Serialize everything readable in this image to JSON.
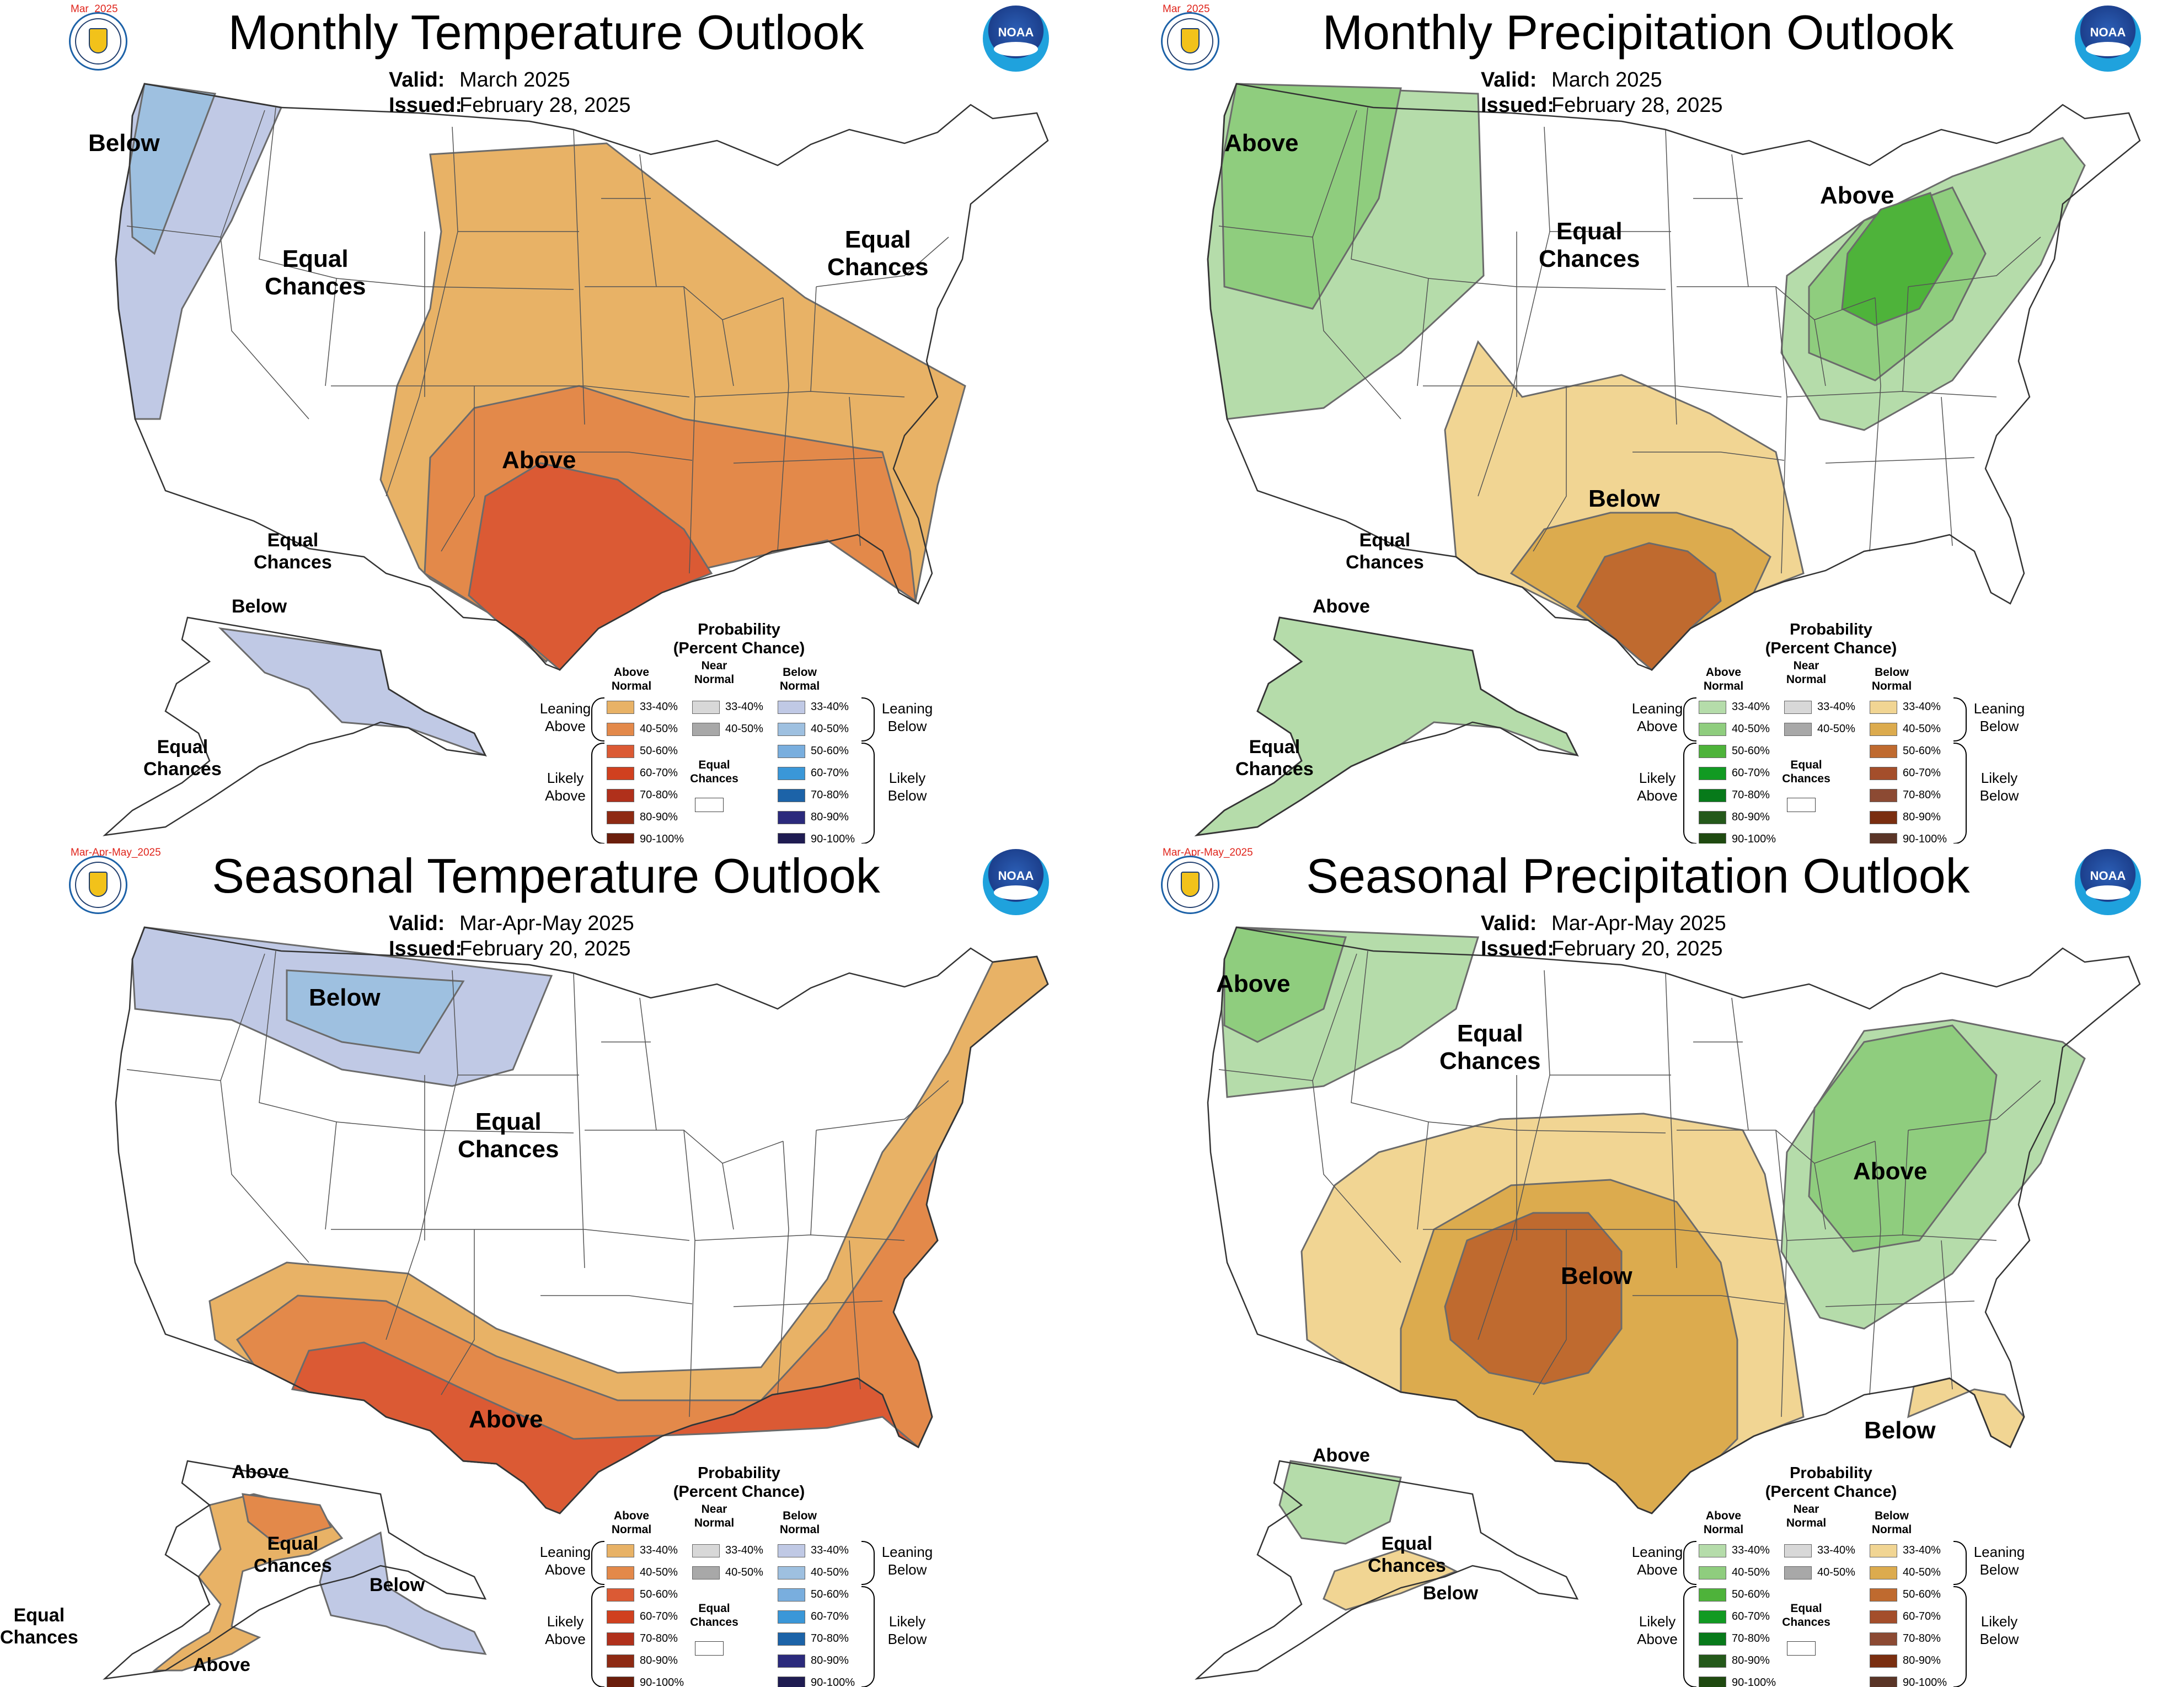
{
  "colors": {
    "temp_above": [
      "#e8b266",
      "#e3894a",
      "#db5a34",
      "#d0401f",
      "#b0301b",
      "#8e2a13",
      "#6b1e0c"
    ],
    "temp_below": [
      "#c0c9e5",
      "#9ec0e0",
      "#79aede",
      "#3a97d8",
      "#1c63a8",
      "#2b2a7c",
      "#1f1c52"
    ],
    "near_normal": [
      "#d8d8d8",
      "#a8a8a8"
    ],
    "prcp_above": [
      "#b5dcaa",
      "#8fcd7e",
      "#4eb33a",
      "#119a22",
      "#077a1a",
      "#24591a",
      "#1f4a10"
    ],
    "prcp_below": [
      "#f1d593",
      "#dcab4e",
      "#bf6a2f",
      "#a44e2b",
      "#8c4a33",
      "#7a2e10",
      "#5a3527"
    ],
    "state_lines": "#555555"
  },
  "panels": [
    {
      "tag": "Mar_2025",
      "title": "Monthly Temperature Outlook",
      "valid_label": "Valid:",
      "valid": "March 2025",
      "issued_label": "Issued:",
      "issued": "February 28, 2025",
      "labels": [
        "Below",
        "Equal\nChances",
        "Equal\nChances",
        "Above",
        "Equal\nChances",
        "Below",
        "Equal\nChances"
      ],
      "legend_kind": "temperature"
    },
    {
      "tag": "Mar_2025",
      "title": "Monthly Precipitation Outlook",
      "valid_label": "Valid:",
      "valid": "March 2025",
      "issued_label": "Issued:",
      "issued": "February 28, 2025",
      "labels": [
        "Above",
        "Equal\nChances",
        "Above",
        "Below",
        "Equal\nChances",
        "Above",
        "Equal\nChances"
      ],
      "legend_kind": "precipitation"
    },
    {
      "tag": "Mar-Apr-May_2025",
      "title": "Seasonal Temperature Outlook",
      "valid_label": "Valid:",
      "valid": "Mar-Apr-May 2025",
      "issued_label": "Issued:",
      "issued": "February 20, 2025",
      "labels": [
        "Below",
        "Equal\nChances",
        "Above",
        "Above",
        "Equal\nChances",
        "Below",
        "Above",
        "Equal\nChances"
      ],
      "legend_kind": "temperature"
    },
    {
      "tag": "Mar-Apr-May_2025",
      "title": "Seasonal Precipitation Outlook",
      "valid_label": "Valid:",
      "valid": "Mar-Apr-May 2025",
      "issued_label": "Issued:",
      "issued": "February 20, 2025",
      "labels": [
        "Above",
        "Equal\nChances",
        "Below",
        "Above",
        "Below",
        "Above",
        "Equal\nChances",
        "Below"
      ],
      "legend_kind": "precipitation"
    }
  ],
  "legend": {
    "title": "Probability\n(Percent Chance)",
    "above_head": "Above\nNormal",
    "near_head": "Near\nNormal",
    "below_head": "Below\nNormal",
    "ranges": [
      "33-40%",
      "40-50%",
      "50-60%",
      "60-70%",
      "70-80%",
      "80-90%",
      "90-100%"
    ],
    "near_ranges": [
      "33-40%",
      "40-50%"
    ],
    "leaning_above": "Leaning\nAbove",
    "likely_above": "Likely\nAbove",
    "leaning_below": "Leaning\nBelow",
    "likely_below": "Likely\nBelow",
    "equal_chances": "Equal\nChances"
  },
  "logos": {
    "noaa": "NOAA"
  }
}
